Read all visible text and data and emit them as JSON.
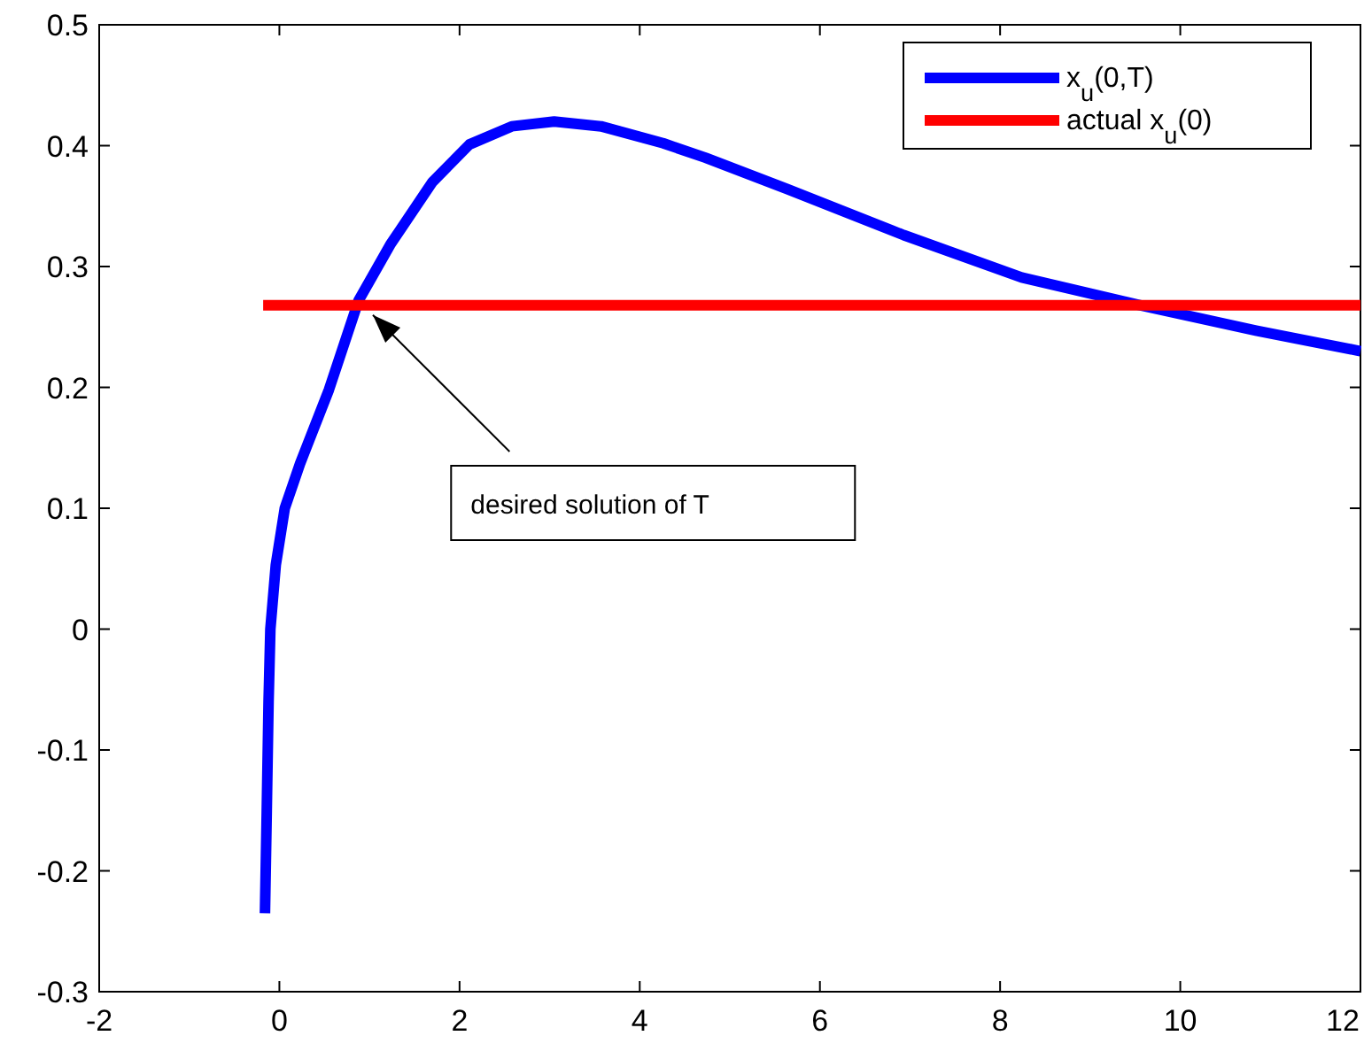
{
  "chart_data": {
    "type": "line",
    "xlim": [
      -2,
      12
    ],
    "ylim": [
      -0.3,
      0.5
    ],
    "xticks": [
      -2,
      0,
      2,
      4,
      6,
      8,
      10,
      12
    ],
    "yticks": [
      -0.3,
      -0.2,
      -0.1,
      0,
      0.1,
      0.2,
      0.3,
      0.4,
      0.5
    ],
    "legend": "top right",
    "grid": false,
    "series": [
      {
        "name": "x$_{u}$(0,T)",
        "color": "#0000ff",
        "x": [
          -0.16,
          -0.14,
          -0.12,
          -0.1,
          -0.04,
          0.06,
          0.23,
          0.55,
          0.88,
          1.23,
          1.7,
          2.11,
          2.58,
          3.05,
          3.57,
          4.26,
          4.73,
          5.64,
          6.93,
          8.24,
          9.55,
          10.84,
          12
        ],
        "values": [
          -0.235,
          -0.15,
          -0.06,
          0.0,
          0.053,
          0.1,
          0.137,
          0.198,
          0.272,
          0.318,
          0.37,
          0.401,
          0.416,
          0.42,
          0.416,
          0.402,
          0.39,
          0.364,
          0.326,
          0.291,
          0.268,
          0.247,
          0.23
        ]
      },
      {
        "name": "actual x$_{u}$(0)",
        "color": "#ff0000",
        "x": [
          -0.18,
          12
        ],
        "values": [
          0.268,
          0.268
        ]
      }
    ],
    "annotations": [
      "desired solution of T"
    ]
  }
}
